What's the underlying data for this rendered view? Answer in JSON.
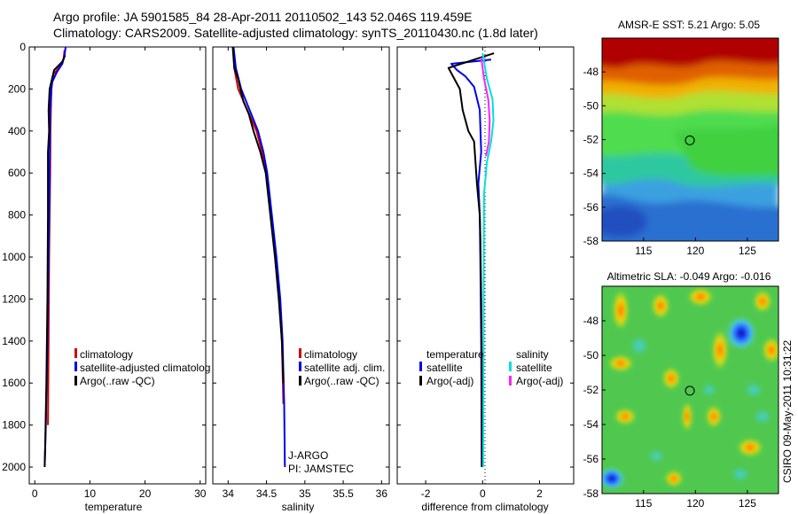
{
  "title_line1": "Argo profile: JA 5901585_84 28-Apr-2011 20110502_143 52.046S 119.459E",
  "title_line2": "Climatology: CARS2009. Satellite-adjusted climatology: synTS_20110430.nc (1.8d later)",
  "credit": "CSIRO 09-May-2011 10:31:22",
  "colors": {
    "climatology": "#d00000",
    "satellite": "#0000ee",
    "argo": "#000000",
    "sal_satellite": "#00e0e0",
    "sal_argo": "#ff20ff"
  },
  "chart_data": [
    {
      "type": "line",
      "name": "temperature-profile",
      "xlabel": "temperature",
      "ylabel": "",
      "xlim": [
        -1,
        31
      ],
      "ylim": [
        2080,
        0
      ],
      "xticks": [
        "0",
        "10",
        "20",
        "30"
      ],
      "xtick_values": [
        0,
        10,
        20,
        30
      ],
      "yticks": [
        "0",
        "200",
        "400",
        "600",
        "800",
        "1000",
        "1200",
        "1400",
        "1600",
        "1800",
        "2000"
      ],
      "ytick_values": [
        0,
        200,
        400,
        600,
        800,
        1000,
        1200,
        1400,
        1600,
        1800,
        2000
      ],
      "legend": [
        "climatology",
        "satellite-adjusted climatolog",
        "Argo(..raw -QC)"
      ],
      "series": [
        {
          "name": "climatology",
          "color_key": "climatology",
          "width": 2,
          "points": [
            [
              5.4,
              15
            ],
            [
              5.2,
              60
            ],
            [
              4.3,
              100
            ],
            [
              3.4,
              130
            ],
            [
              3.0,
              200
            ],
            [
              2.85,
              400
            ],
            [
              2.8,
              600
            ],
            [
              2.6,
              1000
            ],
            [
              2.5,
              1400
            ],
            [
              2.4,
              1800
            ]
          ]
        },
        {
          "name": "satellite",
          "color_key": "satellite",
          "width": 2,
          "points": [
            [
              5.6,
              0
            ],
            [
              5.4,
              40
            ],
            [
              5.0,
              80
            ],
            [
              4.0,
              120
            ],
            [
              3.1,
              170
            ],
            [
              2.8,
              300
            ],
            [
              2.7,
              600
            ],
            [
              2.5,
              1000
            ],
            [
              2.3,
              1400
            ],
            [
              2.0,
              1800
            ],
            [
              1.8,
              1990
            ]
          ]
        },
        {
          "name": "argo",
          "color_key": "argo",
          "width": 2,
          "points": [
            [
              5.5,
              40
            ],
            [
              5.0,
              70
            ],
            [
              3.5,
              110
            ],
            [
              2.7,
              200
            ],
            [
              2.5,
              300
            ],
            [
              2.6,
              400
            ],
            [
              2.4,
              500
            ],
            [
              2.4,
              800
            ],
            [
              2.3,
              1200
            ],
            [
              2.1,
              1600
            ],
            [
              1.9,
              1900
            ],
            [
              1.8,
              2000
            ]
          ]
        }
      ]
    },
    {
      "type": "line",
      "name": "salinity-profile",
      "xlabel": "salinity",
      "xlim": [
        33.8,
        36.1
      ],
      "ylim": [
        2080,
        0
      ],
      "xticks": [
        "34",
        "34.5",
        "35",
        "35.5",
        "36"
      ],
      "xtick_values": [
        34,
        34.5,
        35,
        35.5,
        36
      ],
      "legend": [
        "climatology",
        "satellite adj. clim.",
        "Argo(..raw -QC)"
      ],
      "annotations": [
        "J-ARGO",
        "PI: JAMSTEC"
      ],
      "series": [
        {
          "name": "climatology",
          "color_key": "climatology",
          "width": 2,
          "points": [
            [
              34.07,
              0
            ],
            [
              34.08,
              100
            ],
            [
              34.13,
              200
            ],
            [
              34.25,
              300
            ],
            [
              34.37,
              400
            ],
            [
              34.44,
              500
            ],
            [
              34.5,
              600
            ],
            [
              34.56,
              800
            ],
            [
              34.62,
              1000
            ],
            [
              34.67,
              1200
            ],
            [
              34.7,
              1400
            ],
            [
              34.72,
              1700
            ]
          ]
        },
        {
          "name": "satellite",
          "color_key": "satellite",
          "width": 2,
          "points": [
            [
              34.07,
              0
            ],
            [
              34.1,
              100
            ],
            [
              34.17,
              200
            ],
            [
              34.28,
              300
            ],
            [
              34.39,
              400
            ],
            [
              34.46,
              500
            ],
            [
              34.51,
              600
            ],
            [
              34.57,
              800
            ],
            [
              34.63,
              1000
            ],
            [
              34.68,
              1200
            ],
            [
              34.71,
              1400
            ],
            [
              34.73,
              1700
            ],
            [
              34.74,
              2000
            ]
          ]
        },
        {
          "name": "argo",
          "color_key": "argo",
          "width": 2,
          "points": [
            [
              34.06,
              0
            ],
            [
              34.08,
              100
            ],
            [
              34.13,
              150
            ],
            [
              34.16,
              200
            ],
            [
              34.2,
              260
            ],
            [
              34.27,
              320
            ],
            [
              34.33,
              400
            ],
            [
              34.42,
              500
            ],
            [
              34.49,
              600
            ],
            [
              34.55,
              800
            ],
            [
              34.61,
              1000
            ],
            [
              34.66,
              1200
            ],
            [
              34.7,
              1400
            ],
            [
              34.72,
              1600
            ]
          ]
        }
      ]
    },
    {
      "type": "line",
      "name": "difference-profile",
      "xlabel": "difference from climatology",
      "xlim": [
        -3,
        3.2
      ],
      "ylim": [
        2080,
        0
      ],
      "xticks": [
        "-2",
        "0",
        "2"
      ],
      "xtick_values": [
        -2,
        0,
        2
      ],
      "legend_temperature": [
        "temperature",
        "satellite",
        "Argo(-adj)"
      ],
      "legend_salinity": [
        "salinity",
        "satellite",
        "Argo(-adj)"
      ],
      "series": [
        {
          "name": "temperature-satellite",
          "color_key": "satellite",
          "width": 2,
          "points": [
            [
              0.3,
              60
            ],
            [
              -1.1,
              80
            ],
            [
              -0.9,
              110
            ],
            [
              -0.6,
              140
            ],
            [
              -0.3,
              190
            ],
            [
              -0.1,
              300
            ],
            [
              -0.05,
              500
            ],
            [
              -0.15,
              650
            ],
            [
              -0.1,
              800
            ],
            [
              -0.08,
              1000
            ],
            [
              -0.05,
              1400
            ],
            [
              -0.03,
              2000
            ]
          ]
        },
        {
          "name": "temperature-argo",
          "color_key": "argo",
          "width": 2,
          "points": [
            [
              0.4,
              30
            ],
            [
              -1.2,
              100
            ],
            [
              -0.8,
              200
            ],
            [
              -0.7,
              300
            ],
            [
              -0.5,
              400
            ],
            [
              -0.3,
              450
            ],
            [
              -0.25,
              550
            ],
            [
              -0.2,
              650
            ],
            [
              -0.1,
              800
            ],
            [
              -0.08,
              900
            ],
            [
              -0.05,
              1200
            ],
            [
              -0.03,
              1500
            ],
            [
              -0.02,
              2000
            ]
          ]
        },
        {
          "name": "salinity-satellite",
          "color_key": "sal_satellite",
          "width": 2,
          "points": [
            [
              0.0,
              30
            ],
            [
              0.15,
              150
            ],
            [
              0.35,
              250
            ],
            [
              0.38,
              350
            ],
            [
              0.3,
              450
            ],
            [
              0.15,
              550
            ],
            [
              0.05,
              700
            ],
            [
              0.04,
              1000
            ],
            [
              0.03,
              1500
            ],
            [
              0.02,
              2000
            ]
          ]
        },
        {
          "name": "salinity-argo",
          "color_key": "sal_argo",
          "width": 2,
          "points": [
            [
              -0.05,
              50
            ],
            [
              0.05,
              150
            ],
            [
              0.2,
              250
            ],
            [
              0.25,
              350
            ],
            [
              0.22,
              450
            ],
            [
              0.12,
              520
            ]
          ]
        }
      ]
    },
    {
      "type": "heatmap",
      "name": "sst-map",
      "title": "AMSR-E SST: 5.21 Argo: 5.05",
      "xlim": [
        111,
        128
      ],
      "ylim": [
        -58,
        -46
      ],
      "xticks": [
        "115",
        "120",
        "125"
      ],
      "xtick_values": [
        115,
        120,
        125
      ],
      "yticks": [
        "-48",
        "-50",
        "-52",
        "-54",
        "-56",
        "-58"
      ],
      "ytick_values": [
        -48,
        -50,
        -52,
        -54,
        -56,
        -58
      ],
      "marker": [
        119.459,
        -52.046
      ]
    },
    {
      "type": "heatmap",
      "name": "sla-map",
      "title": "Altimetric SLA: -0.049 Argo: -0.016",
      "xlim": [
        111,
        128
      ],
      "ylim": [
        -58,
        -46
      ],
      "xticks": [
        "115",
        "120",
        "125"
      ],
      "xtick_values": [
        115,
        120,
        125
      ],
      "yticks": [
        "-48",
        "-50",
        "-52",
        "-54",
        "-56",
        "-58"
      ],
      "ytick_values": [
        -48,
        -50,
        -52,
        -54,
        -56,
        -58
      ],
      "marker": [
        119.459,
        -52.046
      ]
    }
  ]
}
